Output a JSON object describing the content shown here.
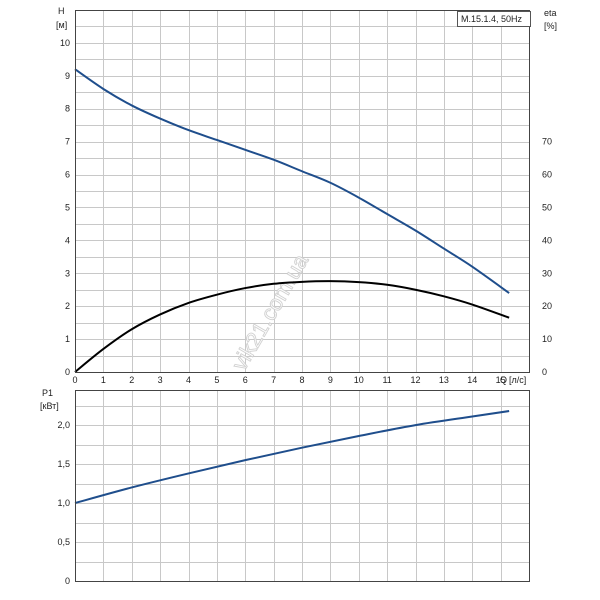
{
  "watermark": "vik21.com.ua",
  "chart_data": [
    {
      "type": "line",
      "title": "M.15.1.4, 50Hz",
      "xlabel": "Q",
      "xunit": "[л/с]",
      "ylabel": "H",
      "yunit": "[м]",
      "y2label": "eta",
      "y2unit": "[%]",
      "xlim": [
        0,
        16
      ],
      "ylim": [
        0,
        11
      ],
      "y2lim": [
        0,
        110
      ],
      "grid": true,
      "x_ticks": [
        "0",
        "1",
        "2",
        "3",
        "4",
        "5",
        "6",
        "7",
        "8",
        "9",
        "10",
        "11",
        "12",
        "13",
        "14",
        "15"
      ],
      "y_ticks": [
        "0",
        "1",
        "2",
        "3",
        "4",
        "5",
        "6",
        "7",
        "8",
        "9",
        "10"
      ],
      "y2_ticks": [
        "0",
        "10",
        "20",
        "30",
        "40",
        "50",
        "60",
        "70"
      ],
      "series": [
        {
          "axis": "left",
          "color": "#1f4e8c",
          "x": [
            0,
            1,
            2,
            3,
            4,
            5,
            6,
            7,
            8,
            9,
            10,
            11,
            12,
            13,
            14,
            15.3
          ],
          "values": [
            9.2,
            8.6,
            8.1,
            7.7,
            7.35,
            7.05,
            6.75,
            6.45,
            6.1,
            5.75,
            5.3,
            4.8,
            4.3,
            3.75,
            3.2,
            2.4
          ]
        },
        {
          "axis": "right",
          "color": "#000000",
          "x": [
            0,
            1,
            2,
            3,
            4,
            5,
            6,
            7,
            8,
            9,
            10,
            11,
            12,
            13,
            14,
            15.3
          ],
          "values": [
            0,
            7,
            13,
            17.5,
            21,
            23.5,
            25.5,
            26.8,
            27.4,
            27.6,
            27.3,
            26.5,
            25,
            23,
            20.5,
            16.5
          ]
        }
      ]
    },
    {
      "type": "line",
      "ylabel": "P1",
      "yunit": "[кВт]",
      "xlim": [
        0,
        16
      ],
      "ylim": [
        0,
        2.45
      ],
      "grid": true,
      "y_ticks": [
        "0",
        "0,5",
        "1,0",
        "1,5",
        "2,0"
      ],
      "series": [
        {
          "color": "#1f4e8c",
          "x": [
            0,
            2,
            4,
            6,
            8,
            10,
            12,
            14,
            15.3
          ],
          "values": [
            1.0,
            1.2,
            1.38,
            1.55,
            1.71,
            1.86,
            2.0,
            2.11,
            2.18
          ]
        }
      ]
    }
  ]
}
